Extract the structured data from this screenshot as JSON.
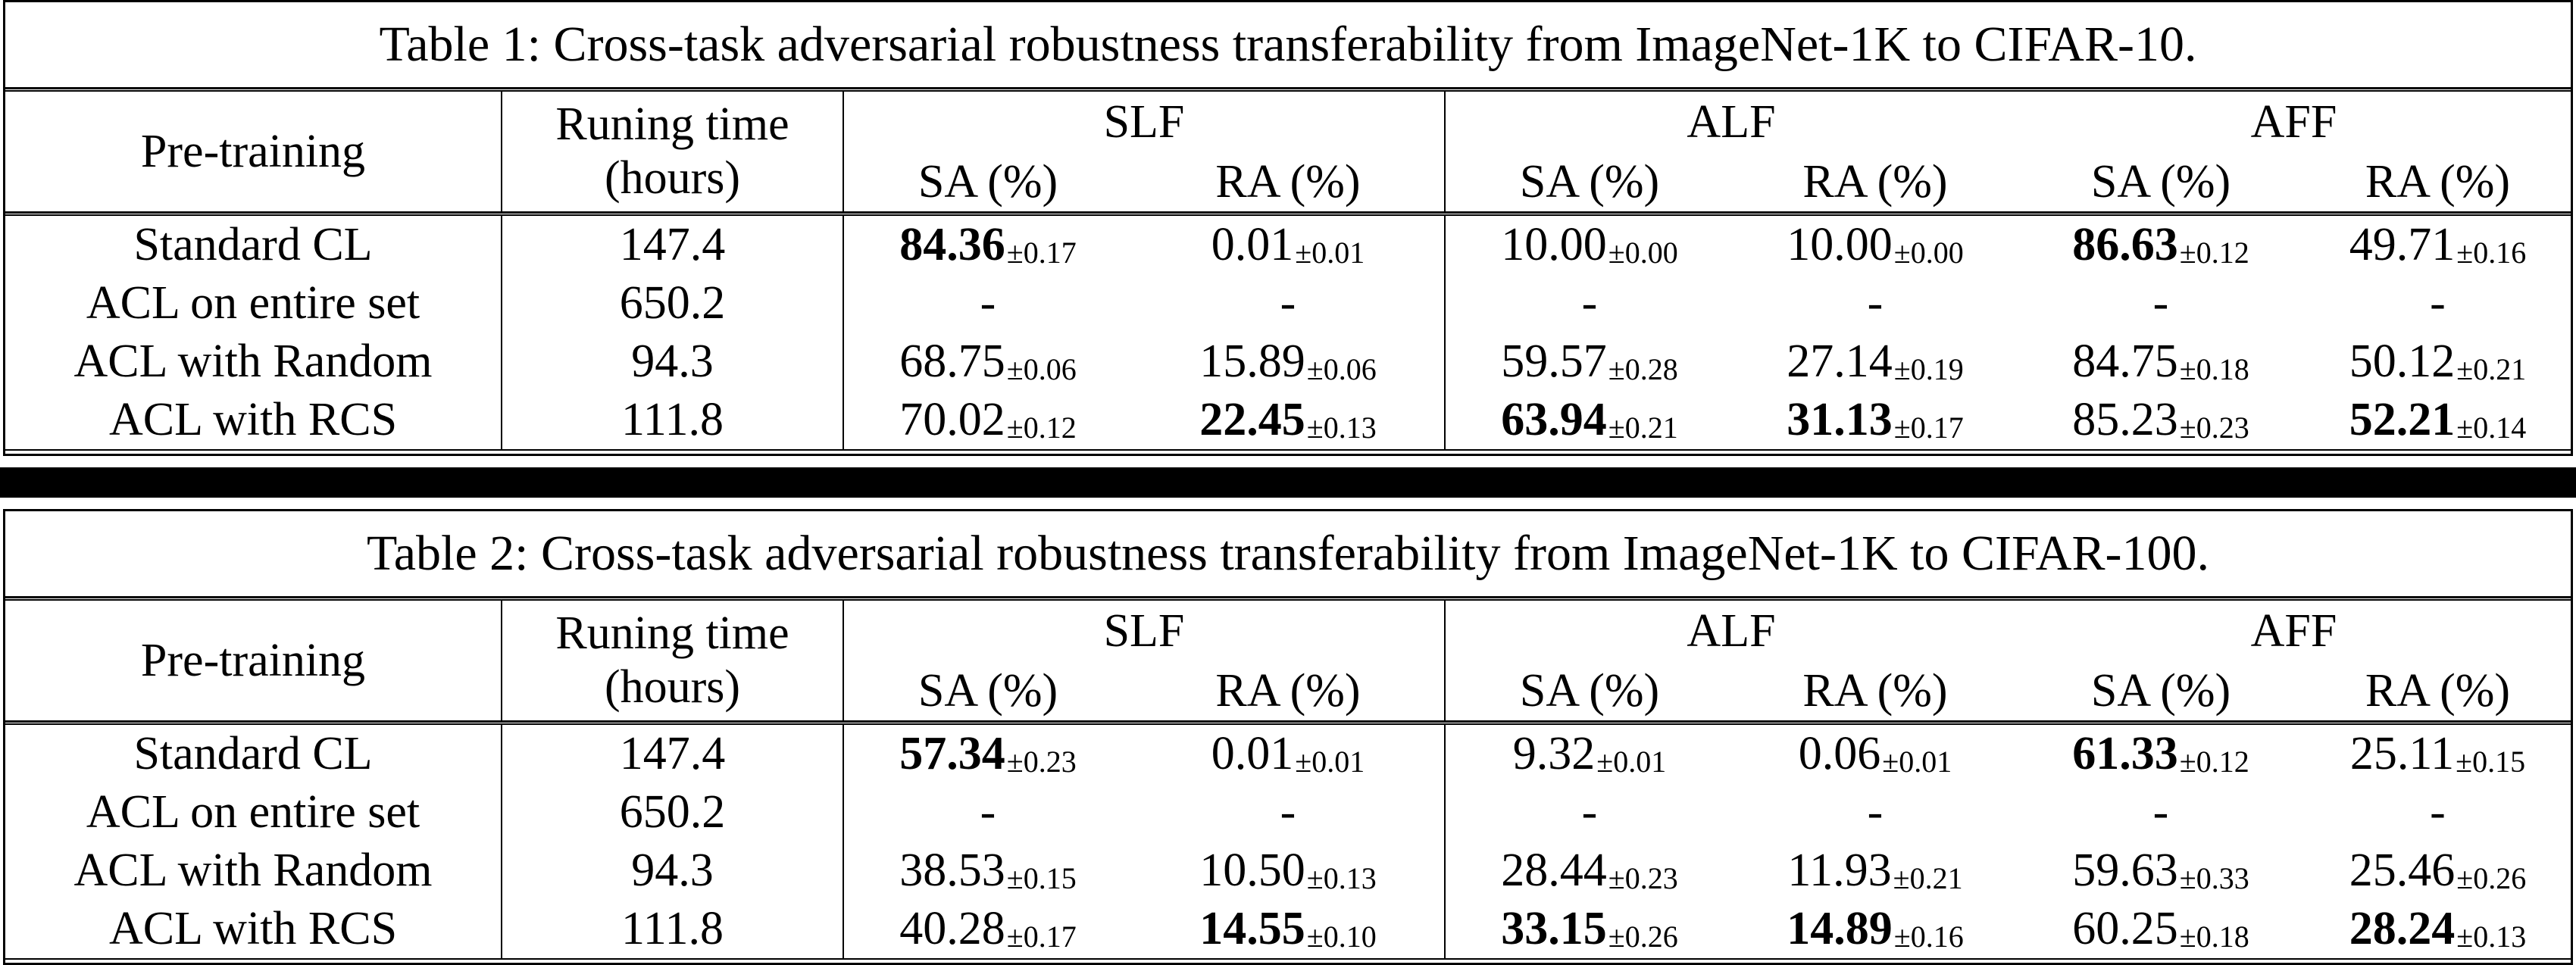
{
  "page": {
    "background": "#ffffff",
    "text_color": "#000000",
    "separator_band_color": "#000000",
    "rule_color": "#000000"
  },
  "tables": [
    {
      "caption": "Table 1: Cross-task adversarial robustness transferability from ImageNet-1K to CIFAR-10.",
      "header": {
        "col1": "Pre-training",
        "col2_line1": "Runing time",
        "col2_line2": "(hours)",
        "groups": [
          "SLF",
          "ALF",
          "AFF"
        ],
        "sa": "SA (%)",
        "ra": "RA (%)"
      },
      "rows": [
        {
          "pretraining": "Standard CL",
          "hours": "147.4",
          "cells": [
            {
              "v": "84.36",
              "pm": "0.17",
              "bold": true
            },
            {
              "v": "0.01",
              "pm": "0.01",
              "bold": false
            },
            {
              "v": "10.00",
              "pm": "0.00",
              "bold": false
            },
            {
              "v": "10.00",
              "pm": "0.00",
              "bold": false
            },
            {
              "v": "86.63",
              "pm": "0.12",
              "bold": true
            },
            {
              "v": "49.71",
              "pm": "0.16",
              "bold": false
            }
          ]
        },
        {
          "pretraining": "ACL on entire set",
          "hours": "650.2",
          "cells": [
            {
              "v": "-",
              "pm": "",
              "bold": false
            },
            {
              "v": "-",
              "pm": "",
              "bold": false
            },
            {
              "v": "-",
              "pm": "",
              "bold": false
            },
            {
              "v": "-",
              "pm": "",
              "bold": false
            },
            {
              "v": "-",
              "pm": "",
              "bold": false
            },
            {
              "v": "-",
              "pm": "",
              "bold": false
            }
          ]
        },
        {
          "pretraining": "ACL with Random",
          "hours": "94.3",
          "cells": [
            {
              "v": "68.75",
              "pm": "0.06",
              "bold": false
            },
            {
              "v": "15.89",
              "pm": "0.06",
              "bold": false
            },
            {
              "v": "59.57",
              "pm": "0.28",
              "bold": false
            },
            {
              "v": "27.14",
              "pm": "0.19",
              "bold": false
            },
            {
              "v": "84.75",
              "pm": "0.18",
              "bold": false
            },
            {
              "v": "50.12",
              "pm": "0.21",
              "bold": false
            }
          ]
        },
        {
          "pretraining": "ACL with RCS",
          "hours": "111.8",
          "cells": [
            {
              "v": "70.02",
              "pm": "0.12",
              "bold": false
            },
            {
              "v": "22.45",
              "pm": "0.13",
              "bold": true
            },
            {
              "v": "63.94",
              "pm": "0.21",
              "bold": true
            },
            {
              "v": "31.13",
              "pm": "0.17",
              "bold": true
            },
            {
              "v": "85.23",
              "pm": "0.23",
              "bold": false
            },
            {
              "v": "52.21",
              "pm": "0.14",
              "bold": true
            }
          ]
        }
      ]
    },
    {
      "caption": "Table 2: Cross-task adversarial robustness transferability from ImageNet-1K to CIFAR-100.",
      "header": {
        "col1": "Pre-training",
        "col2_line1": "Runing time",
        "col2_line2": "(hours)",
        "groups": [
          "SLF",
          "ALF",
          "AFF"
        ],
        "sa": "SA (%)",
        "ra": "RA (%)"
      },
      "rows": [
        {
          "pretraining": "Standard CL",
          "hours": "147.4",
          "cells": [
            {
              "v": "57.34",
              "pm": "0.23",
              "bold": true
            },
            {
              "v": "0.01",
              "pm": "0.01",
              "bold": false
            },
            {
              "v": "9.32",
              "pm": "0.01",
              "bold": false
            },
            {
              "v": "0.06",
              "pm": "0.01",
              "bold": false
            },
            {
              "v": "61.33",
              "pm": "0.12",
              "bold": true
            },
            {
              "v": "25.11",
              "pm": "0.15",
              "bold": false
            }
          ]
        },
        {
          "pretraining": "ACL on entire set",
          "hours": "650.2",
          "cells": [
            {
              "v": "-",
              "pm": "",
              "bold": false
            },
            {
              "v": "-",
              "pm": "",
              "bold": false
            },
            {
              "v": "-",
              "pm": "",
              "bold": false
            },
            {
              "v": "-",
              "pm": "",
              "bold": false
            },
            {
              "v": "-",
              "pm": "",
              "bold": false
            },
            {
              "v": "-",
              "pm": "",
              "bold": false
            }
          ]
        },
        {
          "pretraining": "ACL with Random",
          "hours": "94.3",
          "cells": [
            {
              "v": "38.53",
              "pm": "0.15",
              "bold": false
            },
            {
              "v": "10.50",
              "pm": "0.13",
              "bold": false
            },
            {
              "v": "28.44",
              "pm": "0.23",
              "bold": false
            },
            {
              "v": "11.93",
              "pm": "0.21",
              "bold": false
            },
            {
              "v": "59.63",
              "pm": "0.33",
              "bold": false
            },
            {
              "v": "25.46",
              "pm": "0.26",
              "bold": false
            }
          ]
        },
        {
          "pretraining": "ACL with RCS",
          "hours": "111.8",
          "cells": [
            {
              "v": "40.28",
              "pm": "0.17",
              "bold": false
            },
            {
              "v": "14.55",
              "pm": "0.10",
              "bold": true
            },
            {
              "v": "33.15",
              "pm": "0.26",
              "bold": true
            },
            {
              "v": "14.89",
              "pm": "0.16",
              "bold": true
            },
            {
              "v": "60.25",
              "pm": "0.18",
              "bold": false
            },
            {
              "v": "28.24",
              "pm": "0.13",
              "bold": true
            }
          ]
        }
      ]
    }
  ]
}
